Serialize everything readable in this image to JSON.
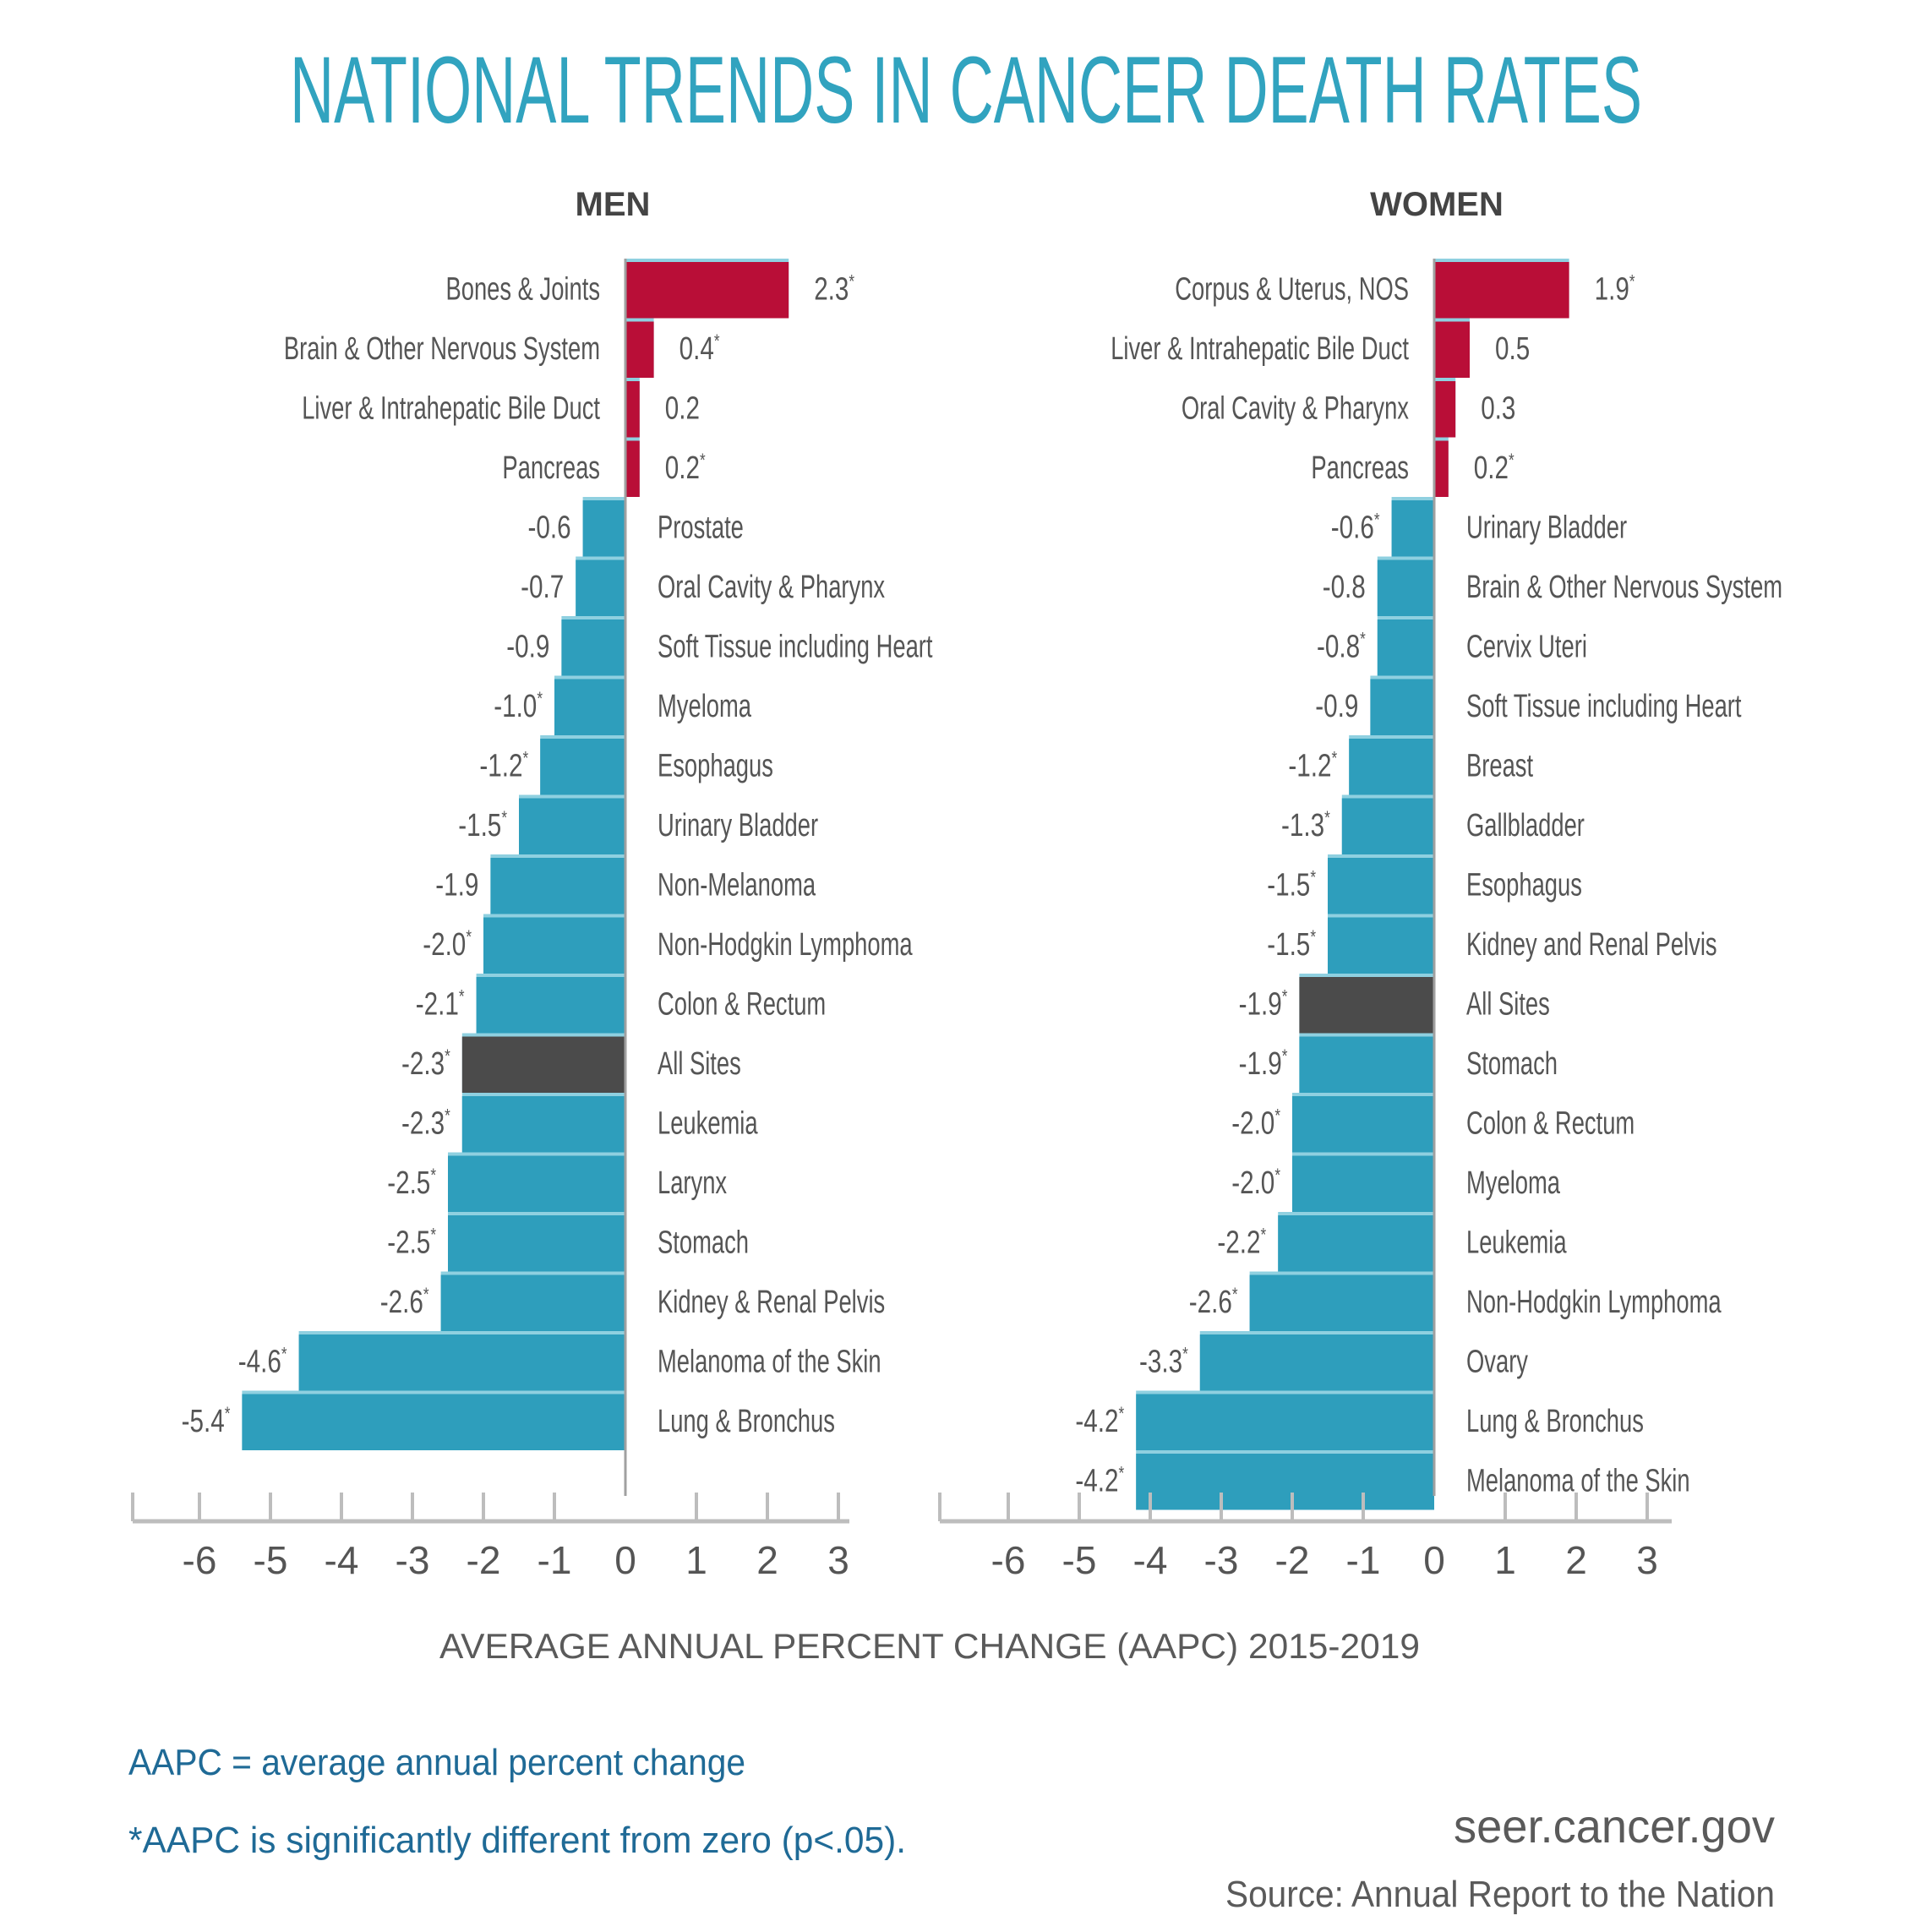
{
  "colors": {
    "increase": "#b90e37",
    "decrease": "#2e9ebc",
    "all_sites": "#4b4b4b",
    "bar_separator": "#8fd0e0",
    "title": "#31a3bf",
    "note": "#1f6a96",
    "axis": "#bdbdbd",
    "text": "#555555"
  },
  "significance_marker": "*",
  "chart_data": [
    {
      "type": "bar",
      "orientation": "horizontal",
      "title": "MEN",
      "xlabel": "AVERAGE ANNUAL PERCENT CHANGE (AAPC) 2015-2019",
      "ylabel": "",
      "xlim": [
        -7,
        3
      ],
      "xticks": [
        -6,
        -5,
        -4,
        -3,
        -2,
        -1,
        0,
        1,
        2,
        3
      ],
      "grid": false,
      "legend": "none",
      "categories": [
        "Bones & Joints",
        "Brain & Other Nervous System",
        "Liver & Intrahepatic Bile Duct",
        "Pancreas",
        "Prostate",
        "Oral Cavity & Pharynx",
        "Soft Tissue including Heart",
        "Myeloma",
        "Esophagus",
        "Urinary Bladder",
        "Non-Melanoma",
        "Non-Hodgkin Lymphoma",
        "Colon & Rectum",
        "All Sites",
        "Leukemia",
        "Larynx",
        "Stomach",
        "Kidney & Renal Pelvis",
        "Melanoma of the Skin",
        "Lung & Bronchus"
      ],
      "values": [
        2.3,
        0.4,
        0.2,
        0.2,
        -0.6,
        -0.7,
        -0.9,
        -1.0,
        -1.2,
        -1.5,
        -1.9,
        -2.0,
        -2.1,
        -2.3,
        -2.3,
        -2.5,
        -2.5,
        -2.6,
        -4.6,
        -5.4
      ],
      "value_labels": [
        "2.3",
        "0.4",
        "0.2",
        "0.2",
        "-0.6",
        "-0.7",
        "-0.9",
        "-1.0",
        "-1.2",
        "-1.5",
        "-1.9",
        "-2.0",
        "-2.1",
        "-2.3",
        "-2.3",
        "-2.5",
        "-2.5",
        "-2.6",
        "-4.6",
        "-5.4"
      ],
      "significant": [
        true,
        true,
        false,
        true,
        false,
        false,
        false,
        true,
        true,
        true,
        false,
        true,
        true,
        true,
        true,
        true,
        true,
        true,
        true,
        true
      ],
      "highlight": "All Sites"
    },
    {
      "type": "bar",
      "orientation": "horizontal",
      "title": "WOMEN",
      "xlabel": "AVERAGE ANNUAL PERCENT CHANGE (AAPC) 2015-2019",
      "ylabel": "",
      "xlim": [
        -7,
        3
      ],
      "xticks": [
        -6,
        -5,
        -4,
        -3,
        -2,
        -1,
        0,
        1,
        2,
        3
      ],
      "grid": false,
      "legend": "none",
      "categories": [
        "Corpus & Uterus, NOS",
        "Liver & Intrahepatic Bile Duct",
        "Oral Cavity & Pharynx",
        "Pancreas",
        "Urinary Bladder",
        "Brain & Other Nervous System",
        "Cervix Uteri",
        "Soft Tissue including Heart",
        "Breast",
        "Gallbladder",
        "Esophagus",
        "Kidney and Renal Pelvis",
        "All Sites",
        "Stomach",
        "Colon & Rectum",
        "Myeloma",
        "Leukemia",
        "Non-Hodgkin Lymphoma",
        "Ovary",
        "Lung & Bronchus",
        "Melanoma of the Skin"
      ],
      "values": [
        1.9,
        0.5,
        0.3,
        0.2,
        -0.6,
        -0.8,
        -0.8,
        -0.9,
        -1.2,
        -1.3,
        -1.5,
        -1.5,
        -1.9,
        -1.9,
        -2.0,
        -2.0,
        -2.2,
        -2.6,
        -3.3,
        -4.2,
        -4.2
      ],
      "value_labels": [
        "1.9",
        "0.5",
        "0.3",
        "0.2",
        "-0.6",
        "-0.8",
        "-0.8",
        "-0.9",
        "-1.2",
        "-1.3",
        "-1.5",
        "-1.5",
        "-1.9",
        "-1.9",
        "-2.0",
        "-2.0",
        "-2.2",
        "-2.6",
        "-3.3",
        "-4.2",
        "-4.2"
      ],
      "significant": [
        true,
        false,
        false,
        true,
        true,
        false,
        true,
        false,
        true,
        true,
        true,
        true,
        true,
        true,
        true,
        true,
        true,
        true,
        true,
        true,
        true
      ],
      "highlight": "All Sites"
    }
  ],
  "header": {
    "title": "NATIONAL TRENDS IN CANCER DEATH RATES"
  },
  "axis_title": "AVERAGE ANNUAL PERCENT CHANGE (AAPC) 2015-2019",
  "footer": {
    "definition": "AAPC = average annual percent change",
    "significance_note": "*AAPC is significantly different from zero (p<.05).",
    "website": "seer.cancer.gov",
    "source": "Source: Annual Report to the Nation"
  }
}
